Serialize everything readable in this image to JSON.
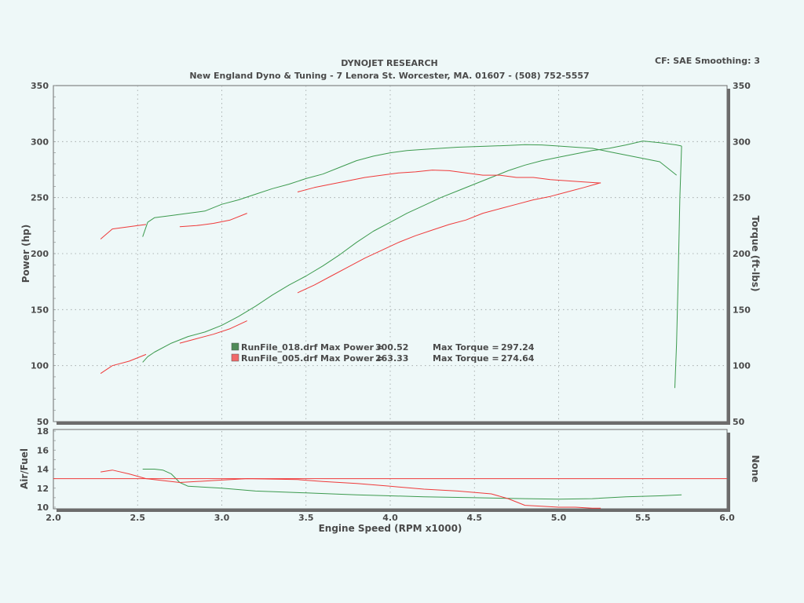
{
  "header": {
    "title": "DYNOJET RESEARCH",
    "subtitle": "New England Dyno & Tuning - 7 Lenora St.  Worcester, MA. 01607 - (508) 752-5557",
    "settings": "CF: SAE  Smoothing: 3"
  },
  "colors": {
    "background": "#eef8f8",
    "run_018": "#3c9a4e",
    "run_005": "#ef3a3a",
    "afr_line_018": "#3c9a4e",
    "afr_line_005": "#ef3a3a",
    "reference_line": "#ef3a3a",
    "frame_shadow": "#6a6a6a"
  },
  "legend": [
    {
      "file": "RunFile_018.drf",
      "power_label": "Max Power =",
      "power": "300.52",
      "torque_label": "Max Torque =",
      "torque": "297.24",
      "color": "#3c9a4e"
    },
    {
      "file": "RunFile_005.drf",
      "power_label": "Max Power =",
      "power": "263.33",
      "torque_label": "Max Torque =",
      "torque": "274.64",
      "color": "#ef3a3a"
    }
  ],
  "chart_data": [
    {
      "type": "line",
      "panel": "main",
      "xlabel": "Engine Speed (RPM x1000)",
      "ylabel": "Power (hp)",
      "y2label": "Torque (ft-lbs)",
      "xlim": [
        2.0,
        6.0
      ],
      "ylim": [
        50,
        350
      ],
      "y2lim": [
        50,
        350
      ],
      "x_ticks": [
        "2.0",
        "2.5",
        "3.0",
        "3.5",
        "4.0",
        "4.5",
        "5.0",
        "5.5",
        "6.0"
      ],
      "y_ticks": [
        "50",
        "100",
        "150",
        "200",
        "250",
        "300",
        "350"
      ],
      "y2_ticks": [
        "50",
        "100",
        "150",
        "200",
        "250",
        "300",
        "350"
      ],
      "grid": true,
      "legend_position": "center",
      "series": [
        {
          "name": "RunFile_018.drf",
          "measure": "power",
          "color": "#3c9a4e",
          "x": [
            2.53,
            2.56,
            2.6,
            2.7,
            2.8,
            2.9,
            3.0,
            3.1,
            3.2,
            3.3,
            3.4,
            3.5,
            3.6,
            3.7,
            3.8,
            3.9,
            4.0,
            4.1,
            4.2,
            4.3,
            4.4,
            4.5,
            4.6,
            4.7,
            4.8,
            4.9,
            5.0,
            5.1,
            5.2,
            5.3,
            5.4,
            5.5,
            5.6,
            5.7,
            5.73
          ],
          "y": [
            103,
            108,
            112,
            120,
            126,
            130,
            136,
            144,
            153,
            163,
            172,
            180,
            189,
            199,
            210,
            220,
            228,
            236,
            243,
            250,
            256,
            262,
            268,
            274,
            279,
            283,
            286,
            289,
            292,
            294,
            297,
            300.5,
            299,
            297,
            296
          ]
        },
        {
          "name": "RunFile_018.drf",
          "measure": "power_dropoff",
          "color": "#3c9a4e",
          "x": [
            5.73,
            5.72,
            5.71,
            5.7,
            5.69
          ],
          "y": [
            296,
            250,
            180,
            120,
            80
          ]
        },
        {
          "name": "RunFile_018.drf",
          "measure": "torque",
          "color": "#3c9a4e",
          "x": [
            2.53,
            2.56,
            2.6,
            2.7,
            2.8,
            2.9,
            3.0,
            3.1,
            3.2,
            3.3,
            3.4,
            3.5,
            3.6,
            3.7,
            3.8,
            3.9,
            4.0,
            4.1,
            4.2,
            4.3,
            4.4,
            4.5,
            4.6,
            4.7,
            4.8,
            4.9,
            5.0,
            5.1,
            5.2,
            5.3,
            5.4,
            5.5,
            5.6,
            5.7
          ],
          "y": [
            215,
            228,
            232,
            234,
            236,
            238,
            244,
            248,
            253,
            258,
            262,
            267,
            271,
            277,
            283,
            287,
            290,
            292,
            293,
            294,
            295,
            295.5,
            296,
            296.5,
            297.2,
            297,
            296,
            295,
            294,
            291,
            288,
            285,
            282,
            270
          ]
        },
        {
          "name": "RunFile_005.drf",
          "measure": "power",
          "color": "#ef3a3a",
          "segments": [
            {
              "x": [
                2.28,
                2.35,
                2.45,
                2.55
              ],
              "y": [
                93,
                100,
                104,
                110
              ]
            },
            {
              "x": [
                2.75,
                2.85,
                2.95,
                3.05,
                3.15
              ],
              "y": [
                120,
                124,
                128,
                133,
                140
              ]
            },
            {
              "x": [
                3.45,
                3.55,
                3.65,
                3.75,
                3.85,
                3.95,
                4.05,
                4.15,
                4.25,
                4.35,
                4.45,
                4.55,
                4.65,
                4.75,
                4.85,
                4.95,
                5.05,
                5.15,
                5.25
              ],
              "y": [
                165,
                172,
                180,
                188,
                196,
                203,
                210,
                216,
                221,
                226,
                230,
                236,
                240,
                244,
                248,
                251,
                255,
                259,
                263.3
              ]
            }
          ]
        },
        {
          "name": "RunFile_005.drf",
          "measure": "torque",
          "color": "#ef3a3a",
          "segments": [
            {
              "x": [
                2.28,
                2.35,
                2.45,
                2.55
              ],
              "y": [
                213,
                222,
                224,
                226
              ]
            },
            {
              "x": [
                2.75,
                2.85,
                2.95,
                3.05,
                3.15
              ],
              "y": [
                224,
                225,
                227,
                230,
                236
              ]
            },
            {
              "x": [
                3.45,
                3.55,
                3.65,
                3.75,
                3.85,
                3.95,
                4.05,
                4.15,
                4.25,
                4.35,
                4.45,
                4.55,
                4.65,
                4.75,
                4.85,
                4.95,
                5.05,
                5.15,
                5.25
              ],
              "y": [
                255,
                259,
                262,
                265,
                268,
                270,
                272,
                273,
                274.6,
                274,
                272,
                270,
                270,
                268,
                268,
                266,
                265,
                264,
                263
              ]
            }
          ]
        }
      ]
    },
    {
      "type": "line",
      "panel": "air_fuel",
      "xlabel": "Engine Speed (RPM x1000)",
      "ylabel": "Air/Fuel",
      "y2label": "None",
      "xlim": [
        2.0,
        6.0
      ],
      "ylim": [
        10,
        18
      ],
      "y_ticks": [
        "10",
        "12",
        "14",
        "16",
        "18"
      ],
      "series": [
        {
          "name": "RunFile_018.drf",
          "color": "#3c9a4e",
          "x": [
            2.53,
            2.6,
            2.65,
            2.7,
            2.75,
            2.8,
            2.9,
            3.0,
            3.2,
            3.5,
            3.8,
            4.0,
            4.2,
            4.5,
            4.8,
            5.0,
            5.2,
            5.4,
            5.6,
            5.73
          ],
          "y": [
            14.0,
            14.0,
            13.9,
            13.5,
            12.6,
            12.2,
            12.1,
            12.0,
            11.7,
            11.5,
            11.3,
            11.2,
            11.1,
            11.0,
            10.9,
            10.85,
            10.9,
            11.1,
            11.2,
            11.3
          ]
        },
        {
          "name": "RunFile_005.drf",
          "color": "#ef3a3a",
          "x": [
            2.28,
            2.35,
            2.45,
            2.55,
            2.75,
            2.85,
            2.95,
            3.15,
            3.45,
            3.6,
            3.8,
            4.0,
            4.2,
            4.4,
            4.6,
            4.7,
            4.8,
            4.9,
            5.0,
            5.1,
            5.2,
            5.25
          ],
          "y": [
            13.7,
            13.9,
            13.5,
            13.0,
            12.6,
            12.7,
            12.8,
            13.0,
            12.9,
            12.7,
            12.5,
            12.2,
            11.9,
            11.7,
            11.4,
            10.9,
            10.2,
            10.1,
            10.0,
            10.0,
            9.9,
            9.9
          ]
        },
        {
          "name": "",
          "color": "#ef3a3a",
          "x": [
            2.0,
            6.0
          ],
          "y": [
            13.0,
            13.0
          ]
        }
      ]
    }
  ]
}
